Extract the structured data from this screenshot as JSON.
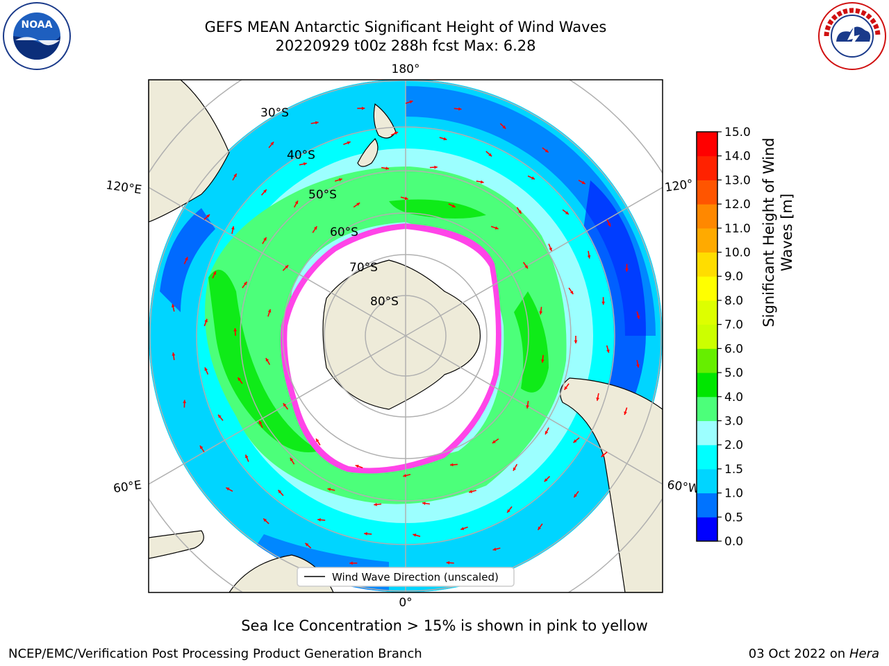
{
  "title": {
    "line1": "GEFS MEAN Antarctic Significant Height of Wind Waves",
    "line2": "20220929 t00z 288h fcst   Max: 6.28"
  },
  "map": {
    "projection": "south-polar-stereographic",
    "longitude_labels": [
      "180°",
      "120°E",
      "120°",
      "60°E",
      "60°W",
      "0°"
    ],
    "latitude_labels": [
      "30°S",
      "40°S",
      "50°S",
      "60°S",
      "70°S",
      "80°S"
    ],
    "legend_label": "Wind Wave Direction (unscaled)",
    "colors": {
      "land": "#eeebd9",
      "sea_ice": "#ff44e8",
      "arrow": "#ff0000",
      "grid": "#b0b0b0"
    }
  },
  "colorbar": {
    "label_line1": "Significant Height of Wind",
    "label_line2": "Waves [m]",
    "ticks": [
      "0.0",
      "0.5",
      "1.0",
      "1.5",
      "2.0",
      "3.0",
      "4.0",
      "5.0",
      "6.0",
      "7.0",
      "8.0",
      "9.0",
      "10.0",
      "11.0",
      "12.0",
      "13.0",
      "14.0",
      "15.0"
    ],
    "colors": [
      "#0000ff",
      "#0073ff",
      "#00d5ff",
      "#00ffff",
      "#9cffff",
      "#4cff7a",
      "#00e600",
      "#66ee00",
      "#ccff00",
      "#ddff00",
      "#ffff00",
      "#ffdd00",
      "#ffaa00",
      "#ff8800",
      "#ff5500",
      "#ff2200",
      "#ff0000"
    ]
  },
  "caption": "Sea Ice Concentration > 15% is shown in pink to yellow",
  "footer": {
    "left": "NCEP/EMC/Verification Post Processing Product Generation Branch",
    "right_date": "03 Oct 2022 on ",
    "right_host": "Hera"
  },
  "logos": {
    "noaa_text": "NOAA",
    "nws_text": "NATIONAL WEATHER SERVICE"
  }
}
